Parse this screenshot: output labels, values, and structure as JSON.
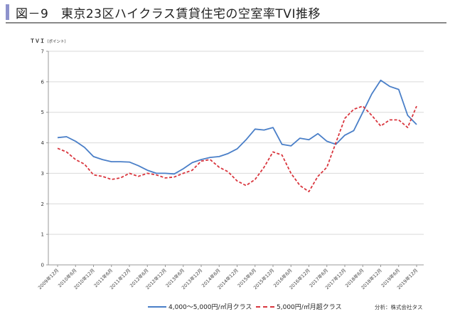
{
  "title": "図－9　東京23区ハイクラス賃貸住宅の空室率TVI推移",
  "source": "分析：株式会社タス",
  "chart_data": {
    "type": "line",
    "title": "図－9　東京23区ハイクラス賃貸住宅の空室率TVI推移",
    "ylabel": "ＴＶＩ（ポイント）",
    "ylabel_main": "ＴＶＩ",
    "ylabel_unit": "（ポイント）",
    "ylim": [
      0,
      7
    ],
    "yticks": [
      0,
      1,
      2,
      3,
      4,
      5,
      6,
      7
    ],
    "grid": true,
    "legend": "bottom",
    "xtick_labels": [
      "2009年12月",
      "2010年6月",
      "2010年12月",
      "2011年6月",
      "2011年12月",
      "2012年6月",
      "2012年12月",
      "2013年6月",
      "2013年12月",
      "2014年6月",
      "2014年12月",
      "2015年6月",
      "2015年12月",
      "2016年6月",
      "2016年12月",
      "2017年6月",
      "2017年12月",
      "2018年6月",
      "2018年12月",
      "2019年6月",
      "2019年12月"
    ],
    "x": [
      "2009-12",
      "2010-03",
      "2010-06",
      "2010-09",
      "2010-12",
      "2011-03",
      "2011-06",
      "2011-09",
      "2011-12",
      "2012-03",
      "2012-06",
      "2012-09",
      "2012-12",
      "2013-03",
      "2013-06",
      "2013-09",
      "2013-12",
      "2014-03",
      "2014-06",
      "2014-09",
      "2014-12",
      "2015-03",
      "2015-06",
      "2015-09",
      "2015-12",
      "2016-03",
      "2016-06",
      "2016-09",
      "2016-12",
      "2017-03",
      "2017-06",
      "2017-09",
      "2017-12",
      "2018-03",
      "2018-06",
      "2018-09",
      "2018-12",
      "2019-03",
      "2019-06",
      "2019-09",
      "2019-12"
    ],
    "series": [
      {
        "name": "4,000～5,000円/㎡月クラス",
        "color": "#4a7fc8",
        "style": "solid",
        "values": [
          4.17,
          4.2,
          4.05,
          3.85,
          3.55,
          3.45,
          3.38,
          3.38,
          3.37,
          3.25,
          3.1,
          3.0,
          3.0,
          2.98,
          3.15,
          3.35,
          3.45,
          3.52,
          3.55,
          3.65,
          3.8,
          4.1,
          4.45,
          4.42,
          4.5,
          3.95,
          3.9,
          4.15,
          4.1,
          4.3,
          4.05,
          3.95,
          4.25,
          4.4,
          5.0,
          5.6,
          6.05,
          5.85,
          5.75,
          4.9,
          4.6
        ]
      },
      {
        "name": "5,000円/㎡月超クラス",
        "color": "#d9363e",
        "style": "dashed",
        "values": [
          3.82,
          3.7,
          3.45,
          3.3,
          2.95,
          2.9,
          2.8,
          2.85,
          3.0,
          2.9,
          3.0,
          2.95,
          2.85,
          2.88,
          3.0,
          3.1,
          3.4,
          3.45,
          3.2,
          3.05,
          2.75,
          2.6,
          2.8,
          3.2,
          3.7,
          3.6,
          3.0,
          2.6,
          2.4,
          2.9,
          3.2,
          4.0,
          4.8,
          5.1,
          5.2,
          4.9,
          4.55,
          4.75,
          4.75,
          4.5,
          5.2
        ]
      }
    ]
  }
}
